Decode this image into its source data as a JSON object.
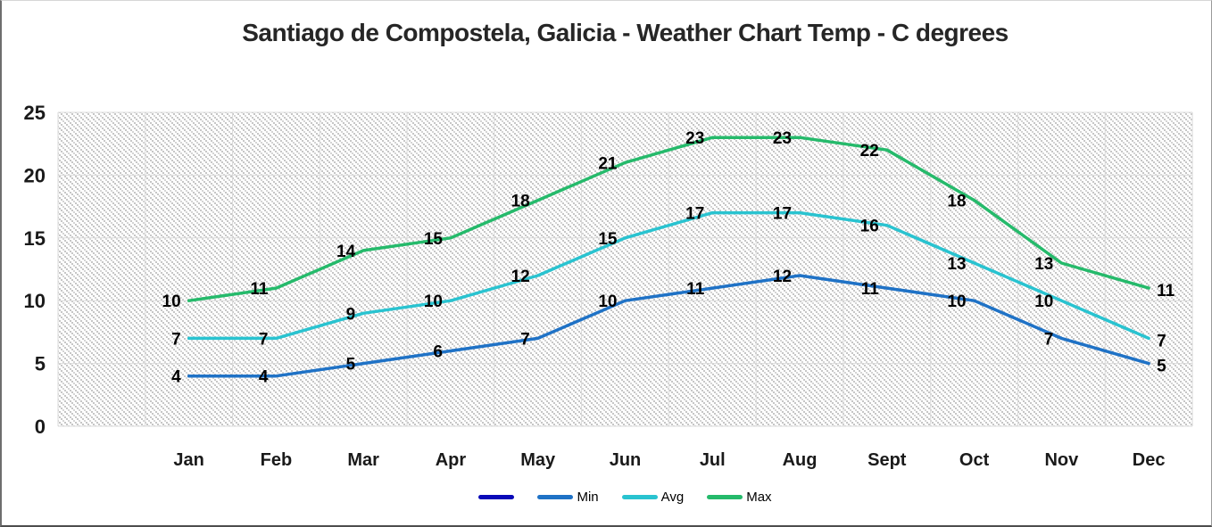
{
  "chart_data": {
    "type": "line",
    "title": "Santiago de Compostela, Galicia - Weather Chart Temp - C degrees",
    "categories": [
      "",
      "Jan",
      "Feb",
      "Mar",
      "Apr",
      "May",
      "Jun",
      "Jul",
      "Aug",
      "Sept",
      "Oct",
      "Nov",
      "Dec"
    ],
    "series": [
      {
        "name": "",
        "color": "#0909b8",
        "values": [
          null,
          null,
          null,
          null,
          null,
          null,
          null,
          null,
          null,
          null,
          null,
          null,
          null
        ]
      },
      {
        "name": "Min",
        "color": "#1f72c6",
        "values": [
          null,
          4,
          4,
          5,
          6,
          7,
          10,
          11,
          12,
          11,
          10,
          7,
          5
        ]
      },
      {
        "name": "Avg",
        "color": "#29c3d0",
        "values": [
          null,
          7,
          7,
          9,
          10,
          12,
          15,
          17,
          17,
          16,
          13,
          10,
          7
        ]
      },
      {
        "name": "Max",
        "color": "#25ba6b",
        "values": [
          null,
          10,
          11,
          14,
          15,
          18,
          21,
          23,
          23,
          22,
          18,
          13,
          11
        ]
      }
    ],
    "ylim": [
      0,
      25
    ],
    "yticks": [
      0,
      5,
      10,
      15,
      20,
      25
    ],
    "grid": true,
    "plot_fill": "diagonal-hatch",
    "gridline_color": "#d9d9d9",
    "data_label_position": "left",
    "legend_position": "bottom"
  }
}
